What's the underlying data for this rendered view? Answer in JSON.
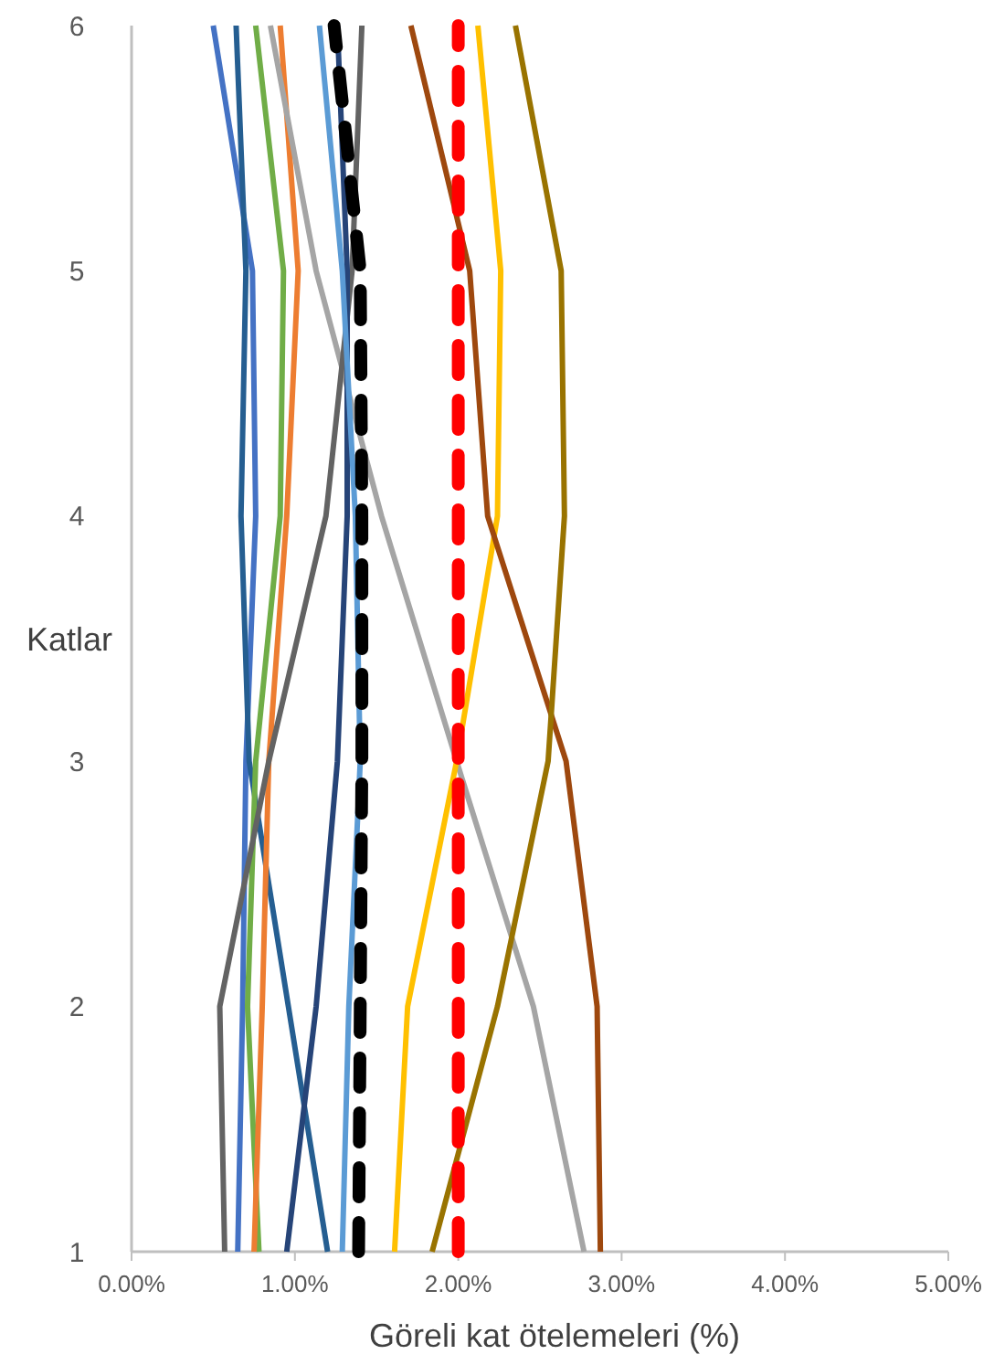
{
  "chart_data": {
    "type": "line",
    "xlabel": "Göreli kat ötelemeleri (%)",
    "ylabel": "Katlar",
    "xlim": [
      0,
      5
    ],
    "xticks": [
      {
        "value": 0,
        "label": "0.00%"
      },
      {
        "value": 1,
        "label": "1.00%"
      },
      {
        "value": 2,
        "label": "2.00%"
      },
      {
        "value": 3,
        "label": "3.00%"
      },
      {
        "value": 4,
        "label": "4.00%"
      },
      {
        "value": 5,
        "label": "5.00%"
      }
    ],
    "ylim": [
      1,
      6
    ],
    "yticks": [
      1,
      2,
      3,
      4,
      5,
      6
    ],
    "grid": false,
    "marker": "none",
    "series": [
      {
        "color": "#4472c4",
        "x": [
          0.65,
          0.68,
          0.7,
          0.76,
          0.74,
          0.5
        ],
        "values": [
          1,
          2,
          3,
          4,
          5,
          6
        ]
      },
      {
        "color": "#255e91",
        "x": [
          1.2,
          0.96,
          0.72,
          0.67,
          0.7,
          0.64
        ],
        "values": [
          1,
          2,
          3,
          4,
          5,
          6
        ]
      },
      {
        "color": "#70ad47",
        "x": [
          0.78,
          0.71,
          0.76,
          0.91,
          0.93,
          0.76
        ],
        "values": [
          1,
          2,
          3,
          4,
          5,
          6
        ]
      },
      {
        "color": "#ed7d31",
        "x": [
          0.75,
          0.8,
          0.84,
          0.95,
          1.02,
          0.91
        ],
        "values": [
          1,
          2,
          3,
          4,
          5,
          6
        ]
      },
      {
        "color": "#a5a5a5",
        "x": [
          2.77,
          2.46,
          1.99,
          1.53,
          1.13,
          0.85
        ],
        "values": [
          1,
          2,
          3,
          4,
          5,
          6
        ]
      },
      {
        "color": "#636363",
        "x": [
          0.57,
          0.54,
          0.84,
          1.19,
          1.35,
          1.41
        ],
        "values": [
          1,
          2,
          3,
          4,
          5,
          6
        ]
      },
      {
        "color": "#264478",
        "x": [
          0.95,
          1.13,
          1.26,
          1.32,
          1.32,
          1.26
        ],
        "values": [
          1,
          2,
          3,
          4,
          5,
          6
        ]
      },
      {
        "color": "#5b9bd5",
        "x": [
          1.29,
          1.33,
          1.4,
          1.37,
          1.29,
          1.15
        ],
        "values": [
          1,
          2,
          3,
          4,
          5,
          6
        ]
      },
      {
        "color": "#ffc000",
        "x": [
          1.61,
          1.69,
          1.99,
          2.24,
          2.26,
          2.12
        ],
        "values": [
          1,
          2,
          3,
          4,
          5,
          6
        ]
      },
      {
        "color": "#9e480e",
        "x": [
          2.87,
          2.85,
          2.66,
          2.18,
          2.07,
          1.71
        ],
        "values": [
          1,
          2,
          3,
          4,
          5,
          6
        ]
      },
      {
        "color": "#997300",
        "x": [
          1.84,
          2.24,
          2.55,
          2.65,
          2.63,
          2.35
        ],
        "values": [
          1,
          2,
          3,
          4,
          5,
          6
        ]
      },
      {
        "color": "#000000",
        "line_style": "dashed",
        "x": [
          1.39,
          1.4,
          1.41,
          1.41,
          1.4,
          1.24
        ],
        "values": [
          1,
          2,
          3,
          4,
          5,
          6
        ]
      },
      {
        "color": "#ff0000",
        "line_style": "dashed",
        "x": [
          2,
          2,
          2,
          2,
          2,
          2
        ],
        "values": [
          1,
          2,
          3,
          4,
          5,
          6
        ]
      }
    ]
  }
}
